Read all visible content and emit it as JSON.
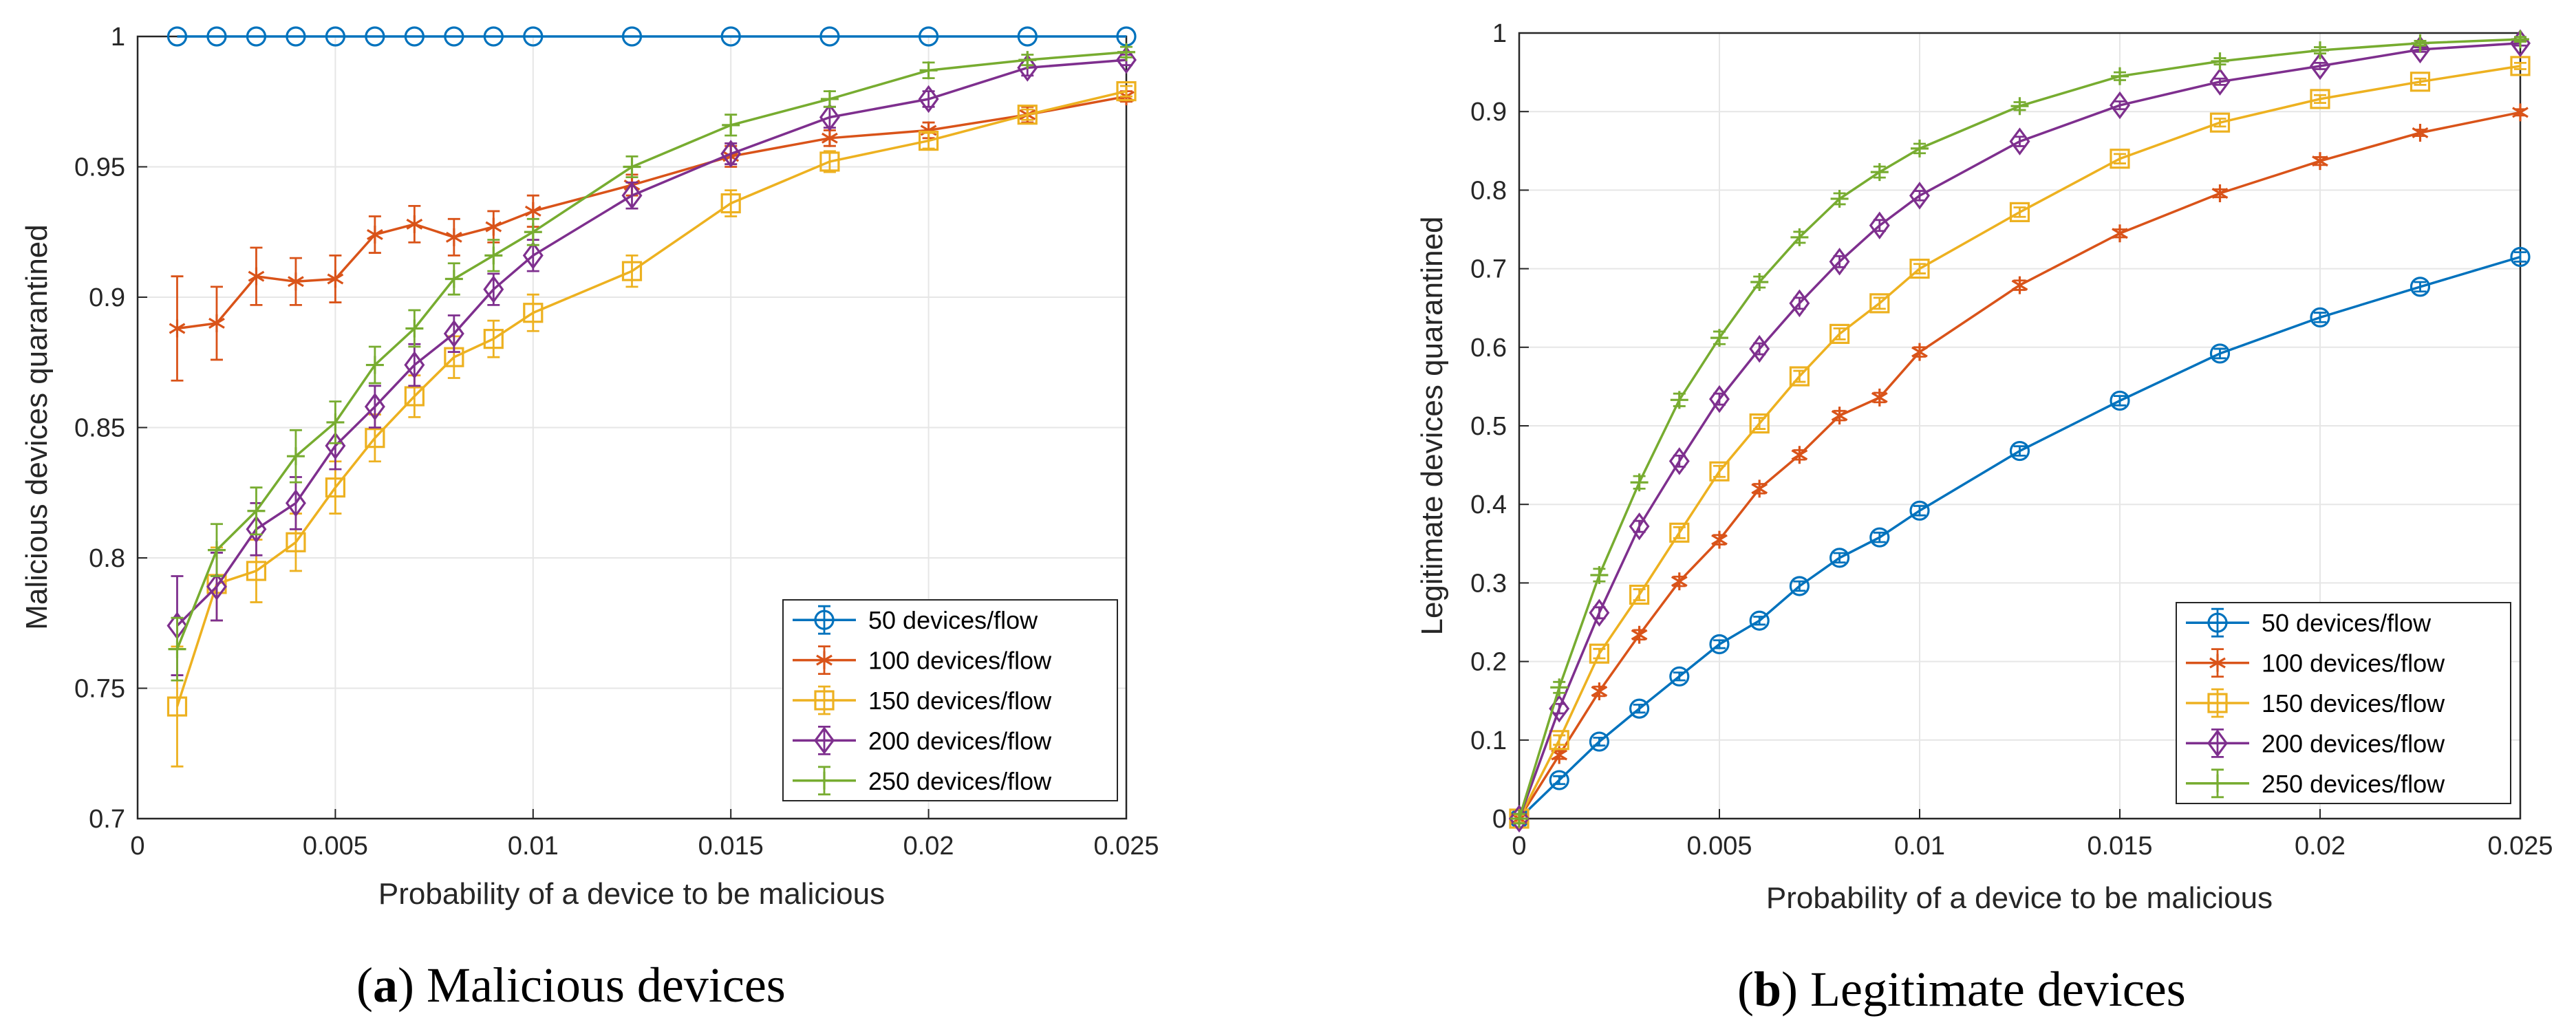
{
  "colors": {
    "series": [
      "#0072BD",
      "#D95319",
      "#EDB120",
      "#7E2F8E",
      "#77AC30"
    ],
    "grid": "#e6e6e6",
    "axis": "#262626"
  },
  "markers": [
    "circle",
    "asterisk",
    "square",
    "diamond",
    "plus"
  ],
  "chart_data": [
    {
      "type": "line",
      "caption": {
        "letter": "a",
        "text": "Malicious devices"
      },
      "xlabel": "Probability of a device to be malicious",
      "ylabel": "Malicious devices quarantined",
      "xlim": [
        0,
        0.025
      ],
      "ylim": [
        0.7,
        1
      ],
      "xticks": [
        0,
        0.005,
        0.01,
        0.015,
        0.02,
        0.025
      ],
      "xtick_labels": [
        "0",
        "0.005",
        "0.01",
        "0.015",
        "0.02",
        "0.025"
      ],
      "yticks": [
        0.7,
        0.75,
        0.8,
        0.85,
        0.9,
        0.95,
        1
      ],
      "ytick_labels": [
        "0.7",
        "0.75",
        "0.8",
        "0.85",
        "0.9",
        "0.95",
        "1"
      ],
      "grid": true,
      "legend_position": "bottom-right",
      "x": [
        0.001,
        0.002,
        0.003,
        0.004,
        0.005,
        0.006,
        0.007,
        0.008,
        0.009,
        0.01,
        0.0125,
        0.015,
        0.0175,
        0.02,
        0.0225,
        0.025
      ],
      "series": [
        {
          "name": "50 devices/flow",
          "values": [
            1,
            1,
            1,
            1,
            1,
            1,
            1,
            1,
            1,
            1,
            1,
            1,
            1,
            1,
            1,
            1
          ],
          "errors": [
            0,
            0,
            0,
            0,
            0,
            0,
            0,
            0,
            0,
            0,
            0,
            0,
            0,
            0,
            0,
            0
          ]
        },
        {
          "name": "100 devices/flow",
          "values": [
            0.888,
            0.89,
            0.908,
            0.906,
            0.907,
            0.924,
            0.928,
            0.923,
            0.927,
            0.933,
            0.943,
            0.954,
            0.961,
            0.964,
            0.97,
            0.977
          ],
          "errors": [
            0.02,
            0.014,
            0.011,
            0.009,
            0.009,
            0.007,
            0.007,
            0.007,
            0.006,
            0.006,
            0.004,
            0.004,
            0.003,
            0.003,
            0.003,
            0.002
          ]
        },
        {
          "name": "150 devices/flow",
          "values": [
            0.743,
            0.79,
            0.795,
            0.806,
            0.827,
            0.846,
            0.862,
            0.877,
            0.884,
            0.894,
            0.91,
            0.936,
            0.952,
            0.96,
            0.97,
            0.979
          ],
          "errors": [
            0.023,
            0.014,
            0.012,
            0.011,
            0.01,
            0.009,
            0.008,
            0.008,
            0.007,
            0.007,
            0.006,
            0.005,
            0.004,
            0.003,
            0.002,
            0.002
          ]
        },
        {
          "name": "200 devices/flow",
          "values": [
            0.774,
            0.789,
            0.811,
            0.821,
            0.843,
            0.858,
            0.874,
            0.886,
            0.903,
            0.916,
            0.939,
            0.955,
            0.969,
            0.976,
            0.988,
            0.991
          ],
          "errors": [
            0.019,
            0.013,
            0.01,
            0.01,
            0.009,
            0.008,
            0.008,
            0.007,
            0.006,
            0.006,
            0.005,
            0.004,
            0.004,
            0.003,
            0.003,
            0.002
          ]
        },
        {
          "name": "250 devices/flow",
          "values": [
            0.765,
            0.803,
            0.818,
            0.839,
            0.852,
            0.874,
            0.888,
            0.907,
            0.916,
            0.925,
            0.95,
            0.966,
            0.976,
            0.987,
            0.991,
            0.994
          ],
          "errors": [
            0.012,
            0.01,
            0.009,
            0.01,
            0.008,
            0.007,
            0.007,
            0.006,
            0.006,
            0.005,
            0.004,
            0.004,
            0.003,
            0.003,
            0.002,
            0.002
          ]
        }
      ]
    },
    {
      "type": "line",
      "caption": {
        "letter": "b",
        "text": "Legitimate devices"
      },
      "xlabel": "Probability of a device to be malicious",
      "ylabel": "Legitimate devices quarantined",
      "xlim": [
        0,
        0.025
      ],
      "ylim": [
        0,
        1
      ],
      "xticks": [
        0,
        0.005,
        0.01,
        0.015,
        0.02,
        0.025
      ],
      "xtick_labels": [
        "0",
        "0.005",
        "0.01",
        "0.015",
        "0.02",
        "0.025"
      ],
      "yticks": [
        0,
        0.1,
        0.2,
        0.3,
        0.4,
        0.5,
        0.6,
        0.7,
        0.8,
        0.9,
        1
      ],
      "ytick_labels": [
        "0",
        "0.1",
        "0.2",
        "0.3",
        "0.4",
        "0.5",
        "0.6",
        "0.7",
        "0.8",
        "0.9",
        "1"
      ],
      "grid": true,
      "legend_position": "bottom-right",
      "x": [
        0,
        0.001,
        0.002,
        0.003,
        0.004,
        0.005,
        0.006,
        0.007,
        0.008,
        0.009,
        0.01,
        0.0125,
        0.015,
        0.0175,
        0.02,
        0.0225,
        0.025
      ],
      "series": [
        {
          "name": "50 devices/flow",
          "values": [
            0,
            0.049,
            0.098,
            0.14,
            0.181,
            0.222,
            0.252,
            0.296,
            0.332,
            0.358,
            0.392,
            0.468,
            0.532,
            0.592,
            0.638,
            0.677,
            0.715
          ],
          "errors": [
            0.005,
            0.005,
            0.005,
            0.005,
            0.005,
            0.005,
            0.005,
            0.006,
            0.006,
            0.006,
            0.006,
            0.006,
            0.006,
            0.006,
            0.006,
            0.006,
            0.006
          ]
        },
        {
          "name": "100 devices/flow",
          "values": [
            0,
            0.081,
            0.162,
            0.234,
            0.302,
            0.355,
            0.42,
            0.463,
            0.513,
            0.536,
            0.594,
            0.679,
            0.745,
            0.796,
            0.837,
            0.873,
            0.899
          ],
          "errors": [
            0.005,
            0.005,
            0.006,
            0.006,
            0.006,
            0.006,
            0.006,
            0.006,
            0.006,
            0.006,
            0.006,
            0.006,
            0.005,
            0.005,
            0.005,
            0.004,
            0.004
          ]
        },
        {
          "name": "150 devices/flow",
          "values": [
            0,
            0.1,
            0.21,
            0.285,
            0.364,
            0.442,
            0.503,
            0.563,
            0.617,
            0.656,
            0.7,
            0.772,
            0.84,
            0.886,
            0.916,
            0.938,
            0.958
          ],
          "errors": [
            0.005,
            0.006,
            0.006,
            0.007,
            0.007,
            0.007,
            0.007,
            0.007,
            0.007,
            0.007,
            0.006,
            0.006,
            0.006,
            0.005,
            0.005,
            0.004,
            0.004
          ]
        },
        {
          "name": "200 devices/flow",
          "values": [
            0,
            0.14,
            0.262,
            0.372,
            0.455,
            0.534,
            0.598,
            0.656,
            0.709,
            0.755,
            0.793,
            0.862,
            0.908,
            0.938,
            0.958,
            0.979,
            0.987
          ],
          "errors": [
            0.006,
            0.006,
            0.007,
            0.007,
            0.007,
            0.007,
            0.007,
            0.007,
            0.007,
            0.007,
            0.006,
            0.006,
            0.005,
            0.004,
            0.004,
            0.003,
            0.003
          ]
        },
        {
          "name": "250 devices/flow",
          "values": [
            0,
            0.167,
            0.31,
            0.428,
            0.533,
            0.612,
            0.683,
            0.74,
            0.789,
            0.823,
            0.853,
            0.907,
            0.945,
            0.964,
            0.978,
            0.987,
            0.992
          ],
          "errors": [
            0.006,
            0.007,
            0.008,
            0.008,
            0.008,
            0.008,
            0.007,
            0.007,
            0.007,
            0.007,
            0.006,
            0.005,
            0.005,
            0.004,
            0.004,
            0.003,
            0.003
          ]
        }
      ]
    }
  ]
}
